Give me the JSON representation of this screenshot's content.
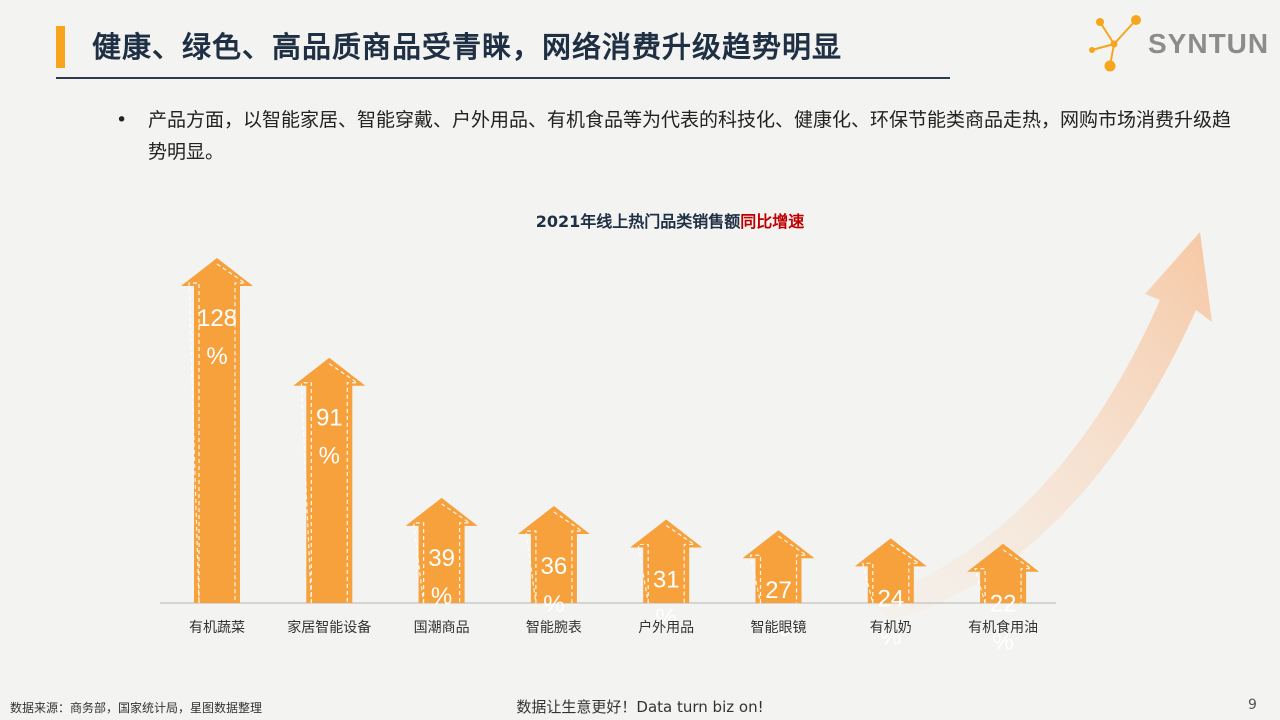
{
  "header": {
    "title": "健康、绿色、高品质商品受青睐，网络消费升级趋势明显",
    "logo_text": "SYNTUN"
  },
  "bullet": {
    "marker": "•",
    "text": "产品方面，以智能家居、智能穿戴、户外用品、有机食品等为代表的科技化、健康化、环保节能类商品走热，网购市场消费升级趋势明显。"
  },
  "chart_data": {
    "type": "bar",
    "title": "2021年线上热门品类销售额",
    "title_highlight": "同比增速",
    "categories": [
      "有机蔬菜",
      "家居智能设备",
      "国潮商品",
      "智能腕表",
      "户外用品",
      "智能眼镜",
      "有机奶",
      "有机食用油"
    ],
    "values": [
      128,
      91,
      39,
      36,
      31,
      27,
      24,
      22
    ],
    "value_suffix": "%",
    "ylim": [
      0,
      140
    ],
    "xlabel": "",
    "ylabel": "",
    "grid": false,
    "colors": {
      "bar": "#f7a13d",
      "label": "#ffffff",
      "trend_arrow": "#f7b98a"
    }
  },
  "footer": {
    "source": "数据来源：商务部，国家统计局，星图数据整理",
    "slogan": "数据让生意更好！Data turn biz on!",
    "page": "9"
  }
}
